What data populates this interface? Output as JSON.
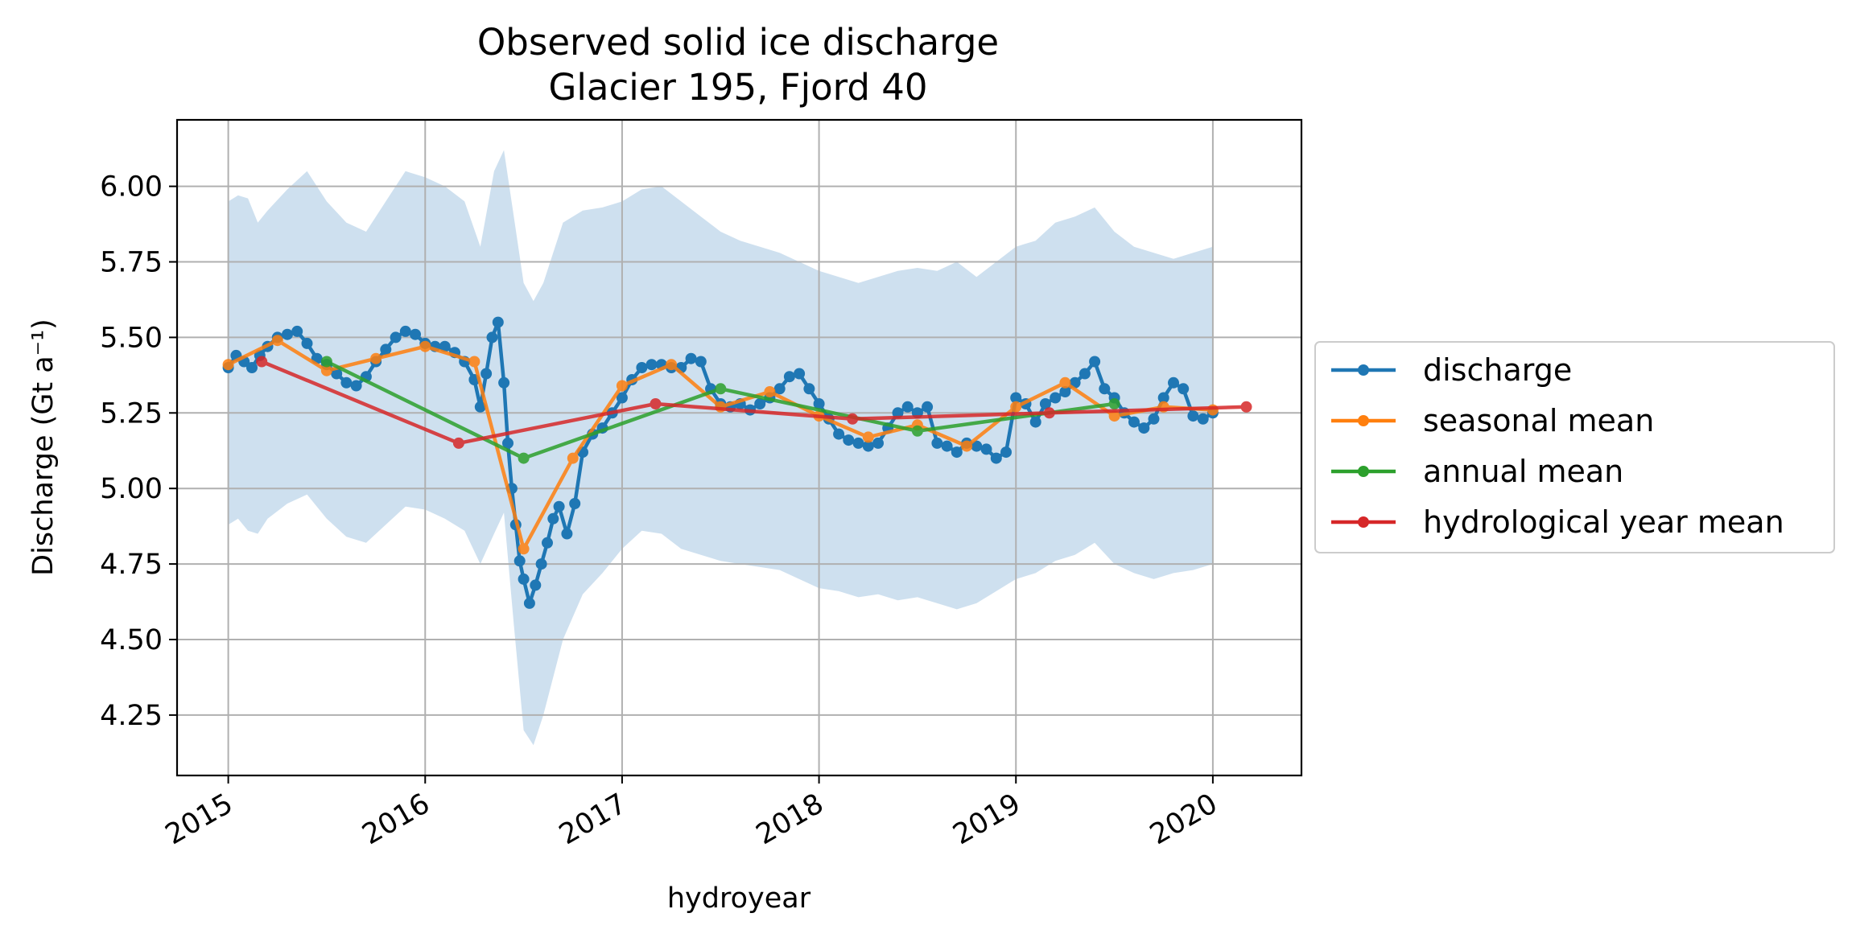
{
  "chart_data": {
    "type": "line",
    "title": "Observed solid ice discharge",
    "subtitle": "Glacier 195, Fjord 40",
    "xlabel": "hydroyear",
    "ylabel": "Discharge (Gt a⁻¹)",
    "ylim": [
      4.05,
      6.22
    ],
    "xlim": [
      2014.74,
      2020.45
    ],
    "x_ticks": [
      "2015",
      "2016",
      "2017",
      "2018",
      "2019",
      "2020"
    ],
    "y_ticks": [
      "4.25",
      "4.50",
      "4.75",
      "5.00",
      "5.25",
      "5.50",
      "5.75",
      "6.00"
    ],
    "grid": true,
    "legend_position": "outside-right",
    "uncertainty_band": {
      "color": "#c6dbec",
      "x": [
        2015.0,
        2015.05,
        2015.1,
        2015.15,
        2015.2,
        2015.3,
        2015.4,
        2015.5,
        2015.6,
        2015.7,
        2015.8,
        2015.9,
        2016.0,
        2016.1,
        2016.2,
        2016.28,
        2016.35,
        2016.4,
        2016.45,
        2016.5,
        2016.55,
        2016.6,
        2016.7,
        2016.8,
        2016.9,
        2017.0,
        2017.1,
        2017.2,
        2017.3,
        2017.4,
        2017.5,
        2017.6,
        2017.7,
        2017.8,
        2017.9,
        2018.0,
        2018.1,
        2018.2,
        2018.3,
        2018.4,
        2018.5,
        2018.6,
        2018.7,
        2018.8,
        2018.9,
        2019.0,
        2019.1,
        2019.2,
        2019.3,
        2019.4,
        2019.5,
        2019.6,
        2019.7,
        2019.8,
        2019.9,
        2020.0
      ],
      "upper": [
        5.95,
        5.97,
        5.96,
        5.88,
        5.92,
        5.99,
        6.05,
        5.95,
        5.88,
        5.85,
        5.95,
        6.05,
        6.03,
        6.0,
        5.95,
        5.8,
        6.05,
        6.12,
        5.9,
        5.68,
        5.62,
        5.68,
        5.88,
        5.92,
        5.93,
        5.95,
        5.99,
        6.0,
        5.95,
        5.9,
        5.85,
        5.82,
        5.8,
        5.78,
        5.75,
        5.72,
        5.7,
        5.68,
        5.7,
        5.72,
        5.73,
        5.72,
        5.75,
        5.7,
        5.75,
        5.8,
        5.82,
        5.88,
        5.9,
        5.93,
        5.85,
        5.8,
        5.78,
        5.76,
        5.78,
        5.8
      ],
      "lower": [
        4.88,
        4.9,
        4.86,
        4.85,
        4.9,
        4.95,
        4.98,
        4.9,
        4.84,
        4.82,
        4.88,
        4.94,
        4.93,
        4.9,
        4.86,
        4.75,
        4.85,
        4.92,
        4.55,
        4.2,
        4.15,
        4.25,
        4.5,
        4.65,
        4.72,
        4.8,
        4.86,
        4.85,
        4.8,
        4.78,
        4.76,
        4.75,
        4.74,
        4.73,
        4.7,
        4.67,
        4.66,
        4.64,
        4.65,
        4.63,
        4.64,
        4.62,
        4.6,
        4.62,
        4.66,
        4.7,
        4.72,
        4.76,
        4.78,
        4.82,
        4.75,
        4.72,
        4.7,
        4.72,
        4.73,
        4.75
      ]
    },
    "series": [
      {
        "name": "discharge",
        "color": "#1f77b4",
        "x": [
          2015.0,
          2015.04,
          2015.08,
          2015.12,
          2015.16,
          2015.2,
          2015.25,
          2015.3,
          2015.35,
          2015.4,
          2015.45,
          2015.5,
          2015.55,
          2015.6,
          2015.65,
          2015.7,
          2015.75,
          2015.8,
          2015.85,
          2015.9,
          2015.95,
          2016.0,
          2016.05,
          2016.1,
          2016.15,
          2016.2,
          2016.25,
          2016.28,
          2016.31,
          2016.34,
          2016.37,
          2016.4,
          2016.42,
          2016.44,
          2016.46,
          2016.48,
          2016.5,
          2016.53,
          2016.56,
          2016.59,
          2016.62,
          2016.65,
          2016.68,
          2016.72,
          2016.76,
          2016.8,
          2016.85,
          2016.9,
          2016.95,
          2017.0,
          2017.05,
          2017.1,
          2017.15,
          2017.2,
          2017.25,
          2017.3,
          2017.35,
          2017.4,
          2017.45,
          2017.5,
          2017.55,
          2017.6,
          2017.65,
          2017.7,
          2017.75,
          2017.8,
          2017.85,
          2017.9,
          2017.95,
          2018.0,
          2018.05,
          2018.1,
          2018.15,
          2018.2,
          2018.25,
          2018.3,
          2018.35,
          2018.4,
          2018.45,
          2018.5,
          2018.55,
          2018.6,
          2018.65,
          2018.7,
          2018.75,
          2018.8,
          2018.85,
          2018.9,
          2018.95,
          2019.0,
          2019.05,
          2019.1,
          2019.15,
          2019.2,
          2019.25,
          2019.3,
          2019.35,
          2019.4,
          2019.45,
          2019.5,
          2019.55,
          2019.6,
          2019.65,
          2019.7,
          2019.75,
          2019.8,
          2019.85,
          2019.9,
          2019.95,
          2020.0
        ],
        "y": [
          5.4,
          5.44,
          5.42,
          5.4,
          5.44,
          5.47,
          5.5,
          5.51,
          5.52,
          5.48,
          5.43,
          5.41,
          5.38,
          5.35,
          5.34,
          5.37,
          5.42,
          5.46,
          5.5,
          5.52,
          5.51,
          5.48,
          5.47,
          5.47,
          5.45,
          5.42,
          5.36,
          5.27,
          5.38,
          5.5,
          5.55,
          5.35,
          5.15,
          5.0,
          4.88,
          4.76,
          4.7,
          4.62,
          4.68,
          4.75,
          4.82,
          4.9,
          4.94,
          4.85,
          4.95,
          5.12,
          5.18,
          5.2,
          5.25,
          5.3,
          5.36,
          5.4,
          5.41,
          5.41,
          5.4,
          5.4,
          5.43,
          5.42,
          5.33,
          5.28,
          5.27,
          5.28,
          5.26,
          5.28,
          5.3,
          5.33,
          5.37,
          5.38,
          5.33,
          5.28,
          5.23,
          5.18,
          5.16,
          5.15,
          5.14,
          5.15,
          5.2,
          5.25,
          5.27,
          5.25,
          5.27,
          5.15,
          5.14,
          5.12,
          5.15,
          5.14,
          5.13,
          5.1,
          5.12,
          5.3,
          5.28,
          5.22,
          5.28,
          5.3,
          5.32,
          5.35,
          5.38,
          5.42,
          5.33,
          5.3,
          5.25,
          5.22,
          5.2,
          5.23,
          5.3,
          5.35,
          5.33,
          5.24,
          5.23,
          5.25
        ]
      },
      {
        "name": "seasonal mean",
        "color": "#ff7f0e",
        "x": [
          2015.0,
          2015.25,
          2015.5,
          2015.75,
          2016.0,
          2016.25,
          2016.5,
          2016.75,
          2017.0,
          2017.25,
          2017.5,
          2017.75,
          2018.0,
          2018.25,
          2018.5,
          2018.75,
          2019.0,
          2019.25,
          2019.5,
          2019.75,
          2020.0
        ],
        "y": [
          5.41,
          5.49,
          5.39,
          5.43,
          5.47,
          5.42,
          4.8,
          5.1,
          5.34,
          5.41,
          5.27,
          5.32,
          5.24,
          5.17,
          5.21,
          5.14,
          5.27,
          5.35,
          5.24,
          5.27,
          5.26
        ]
      },
      {
        "name": "annual mean",
        "color": "#2ca02c",
        "x": [
          2015.5,
          2016.5,
          2017.5,
          2018.5,
          2019.5
        ],
        "y": [
          5.42,
          5.1,
          5.33,
          5.19,
          5.28
        ]
      },
      {
        "name": "hydrological year mean",
        "color": "#d62728",
        "x": [
          2015.17,
          2016.17,
          2017.17,
          2018.17,
          2019.17,
          2020.17
        ],
        "y": [
          5.42,
          5.15,
          5.28,
          5.23,
          5.25,
          5.27
        ]
      }
    ]
  }
}
